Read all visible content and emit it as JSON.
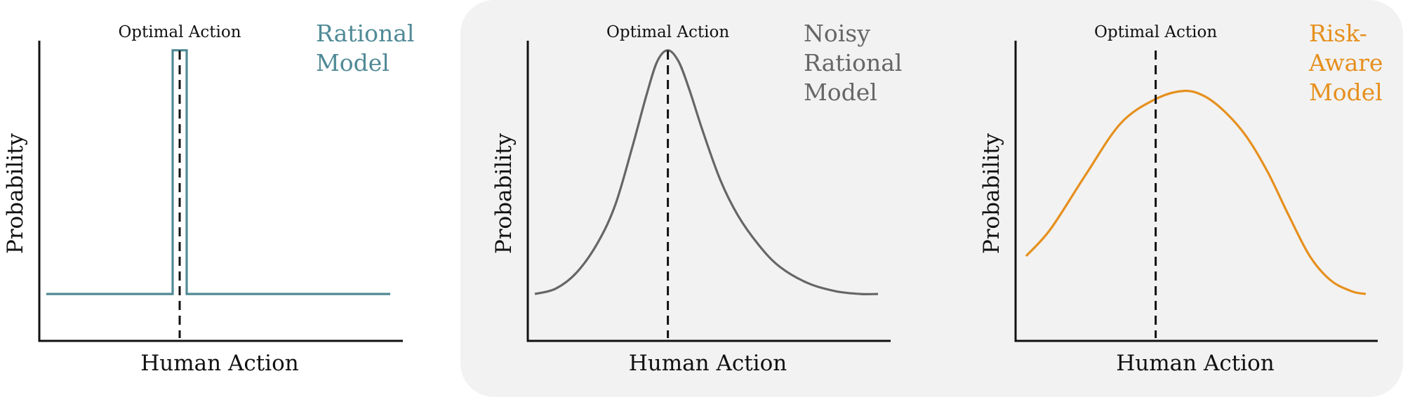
{
  "highlight_color": "#f2f2f2",
  "chart_data": [
    {
      "type": "line",
      "title_lines": [
        "Rational",
        "Model"
      ],
      "color": "#4f8a96",
      "xlabel": "Human Action",
      "ylabel": "Probability",
      "annotation": "Optimal Action",
      "optimal_x": 0.4,
      "xlim": [
        0,
        1
      ],
      "ylim": [
        0,
        1
      ],
      "highlighted": false,
      "x": [
        0.02,
        0.38,
        0.38,
        0.42,
        0.42,
        1.0
      ],
      "y": [
        0.08,
        0.08,
        0.98,
        0.98,
        0.08,
        0.08
      ]
    },
    {
      "type": "line",
      "title_lines": [
        "Noisy",
        "Rational",
        "Model"
      ],
      "color": "#666666",
      "xlabel": "Human Action",
      "ylabel": "Probability",
      "annotation": "Optimal Action",
      "optimal_x": 0.4,
      "xlim": [
        0,
        1
      ],
      "ylim": [
        0,
        1
      ],
      "highlighted": true,
      "x": [
        0.02,
        0.08,
        0.14,
        0.2,
        0.25,
        0.3,
        0.34,
        0.37,
        0.4,
        0.43,
        0.46,
        0.5,
        0.55,
        0.6,
        0.66,
        0.72,
        0.8,
        0.88,
        0.95,
        1.0
      ],
      "y": [
        0.08,
        0.1,
        0.16,
        0.27,
        0.41,
        0.63,
        0.82,
        0.94,
        0.98,
        0.94,
        0.84,
        0.68,
        0.5,
        0.37,
        0.26,
        0.18,
        0.12,
        0.09,
        0.08,
        0.08
      ]
    },
    {
      "type": "line",
      "title_lines": [
        "Risk-",
        "Aware",
        "Model"
      ],
      "color": "#e6901e",
      "xlabel": "Human Action",
      "ylabel": "Probability",
      "annotation": "Optimal Action",
      "optimal_x": 0.4,
      "xlim": [
        0,
        1
      ],
      "ylim": [
        0,
        1
      ],
      "highlighted": false,
      "x": [
        0.03,
        0.1,
        0.2,
        0.3,
        0.4,
        0.48,
        0.54,
        0.6,
        0.66,
        0.72,
        0.78,
        0.84,
        0.9,
        0.96,
        1.0
      ],
      "y": [
        0.22,
        0.32,
        0.52,
        0.71,
        0.8,
        0.83,
        0.81,
        0.75,
        0.66,
        0.53,
        0.37,
        0.22,
        0.13,
        0.09,
        0.08
      ]
    }
  ]
}
